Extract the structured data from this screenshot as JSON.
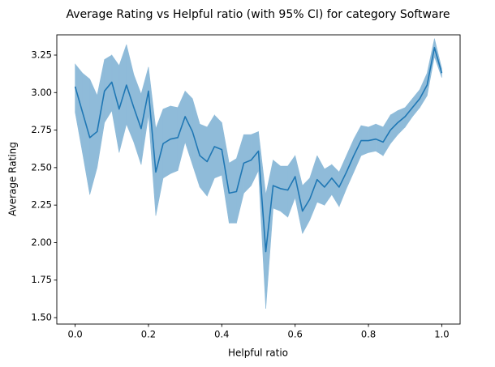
{
  "chart_data": {
    "type": "line",
    "title": "Average Rating vs Helpful ratio (with 95% CI) for category Software",
    "xlabel": "Helpful ratio",
    "ylabel": "Average Rating",
    "x": [
      0,
      0.02,
      0.04,
      0.06,
      0.08,
      0.1,
      0.12,
      0.14,
      0.16,
      0.18,
      0.2,
      0.22,
      0.24,
      0.26,
      0.28,
      0.3,
      0.32,
      0.34,
      0.36,
      0.38,
      0.4,
      0.42,
      0.44,
      0.46,
      0.48,
      0.5,
      0.52,
      0.54,
      0.56,
      0.58,
      0.6,
      0.62,
      0.64,
      0.66,
      0.68,
      0.7,
      0.72,
      0.74,
      0.76,
      0.78,
      0.8,
      0.82,
      0.84,
      0.86,
      0.88,
      0.9,
      0.92,
      0.94,
      0.96,
      0.98,
      1
    ],
    "series": [
      {
        "color": "#1f77b4",
        "band_color": "#8fbbd9",
        "values": [
          3.04,
          2.87,
          2.7,
          2.74,
          3.01,
          3.07,
          2.89,
          3.05,
          2.9,
          2.76,
          3.01,
          2.47,
          2.66,
          2.69,
          2.7,
          2.84,
          2.74,
          2.58,
          2.54,
          2.64,
          2.62,
          2.33,
          2.34,
          2.53,
          2.55,
          2.61,
          1.94,
          2.38,
          2.36,
          2.35,
          2.44,
          2.21,
          2.29,
          2.42,
          2.37,
          2.43,
          2.37,
          2.47,
          2.58,
          2.68,
          2.68,
          2.69,
          2.67,
          2.75,
          2.8,
          2.84,
          2.9,
          2.96,
          3.05,
          3.3,
          3.13
        ],
        "upper": [
          3.19,
          3.13,
          3.09,
          2.98,
          3.22,
          3.25,
          3.18,
          3.32,
          3.12,
          2.99,
          3.17,
          2.76,
          2.89,
          2.91,
          2.9,
          3.01,
          2.96,
          2.79,
          2.77,
          2.85,
          2.8,
          2.53,
          2.56,
          2.72,
          2.72,
          2.74,
          2.32,
          2.55,
          2.51,
          2.51,
          2.58,
          2.38,
          2.43,
          2.58,
          2.49,
          2.52,
          2.47,
          2.58,
          2.69,
          2.78,
          2.77,
          2.79,
          2.77,
          2.85,
          2.88,
          2.9,
          2.96,
          3.02,
          3.13,
          3.36,
          3.16
        ],
        "lower": [
          2.87,
          2.6,
          2.32,
          2.5,
          2.8,
          2.88,
          2.6,
          2.79,
          2.67,
          2.52,
          2.85,
          2.18,
          2.43,
          2.46,
          2.48,
          2.67,
          2.52,
          2.37,
          2.31,
          2.43,
          2.45,
          2.13,
          2.13,
          2.33,
          2.38,
          2.48,
          1.56,
          2.23,
          2.21,
          2.17,
          2.3,
          2.06,
          2.15,
          2.27,
          2.25,
          2.32,
          2.24,
          2.36,
          2.47,
          2.58,
          2.6,
          2.61,
          2.58,
          2.66,
          2.72,
          2.77,
          2.84,
          2.9,
          2.98,
          3.24,
          3.1
        ]
      }
    ],
    "xlim": [
      -0.05,
      1.05
    ],
    "xticks": [
      {
        "value": 0,
        "label": "0.0"
      },
      {
        "value": 0.2,
        "label": "0.2"
      },
      {
        "value": 0.4,
        "label": "0.4"
      },
      {
        "value": 0.6,
        "label": "0.6"
      },
      {
        "value": 0.8,
        "label": "0.8"
      },
      {
        "value": 1,
        "label": "1.0"
      }
    ],
    "ylim": [
      1.457,
      3.385
    ],
    "yticks": [
      {
        "value": 1.5,
        "label": "1.50"
      },
      {
        "value": 1.75,
        "label": "1.75"
      },
      {
        "value": 2,
        "label": "2.00"
      },
      {
        "value": 2.25,
        "label": "2.25"
      },
      {
        "value": 2.5,
        "label": "2.50"
      },
      {
        "value": 2.75,
        "label": "2.75"
      },
      {
        "value": 3,
        "label": "3.00"
      },
      {
        "value": 3.25,
        "label": "3.25"
      }
    ]
  }
}
